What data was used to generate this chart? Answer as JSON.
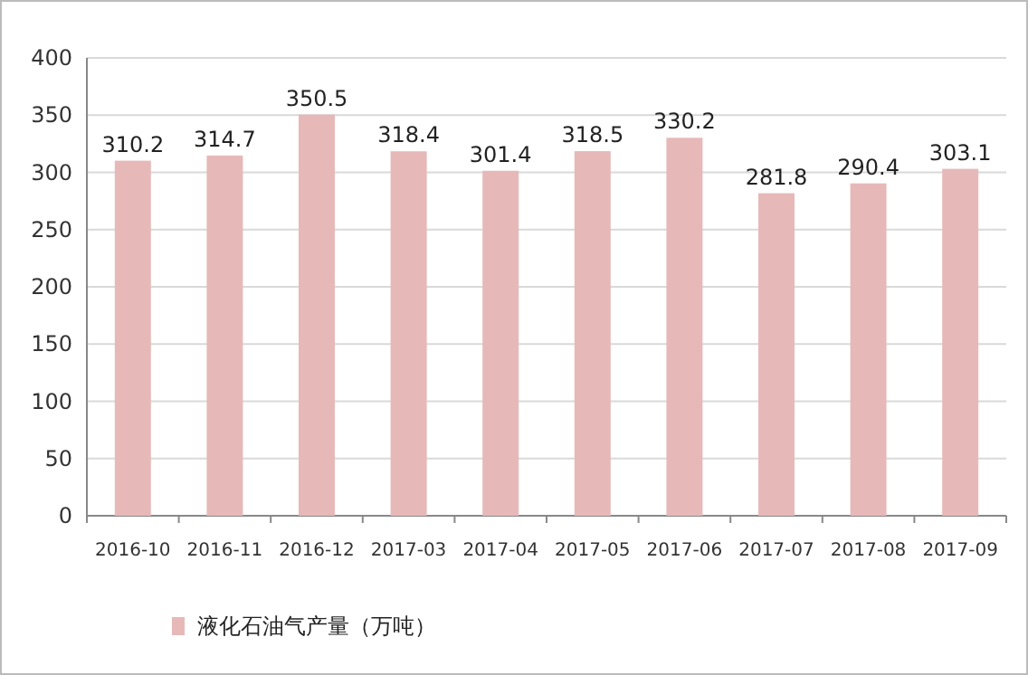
{
  "chart_data": {
    "type": "bar",
    "categories": [
      "2016-10",
      "2016-11",
      "2016-12",
      "2017-03",
      "2017-04",
      "2017-05",
      "2017-06",
      "2017-07",
      "2017-08",
      "2017-09"
    ],
    "series": [
      {
        "name": "液化石油气产量（万吨）",
        "color": "#e6b9b8",
        "values": [
          310.2,
          314.7,
          350.5,
          318.4,
          301.4,
          318.5,
          330.2,
          281.8,
          290.4,
          303.1
        ]
      }
    ],
    "ylim": [
      0,
      400
    ],
    "yticks": [
      0,
      50,
      100,
      150,
      200,
      250,
      300,
      350,
      400
    ],
    "grid": "y",
    "data_labels": true,
    "legend": "bottom left"
  }
}
